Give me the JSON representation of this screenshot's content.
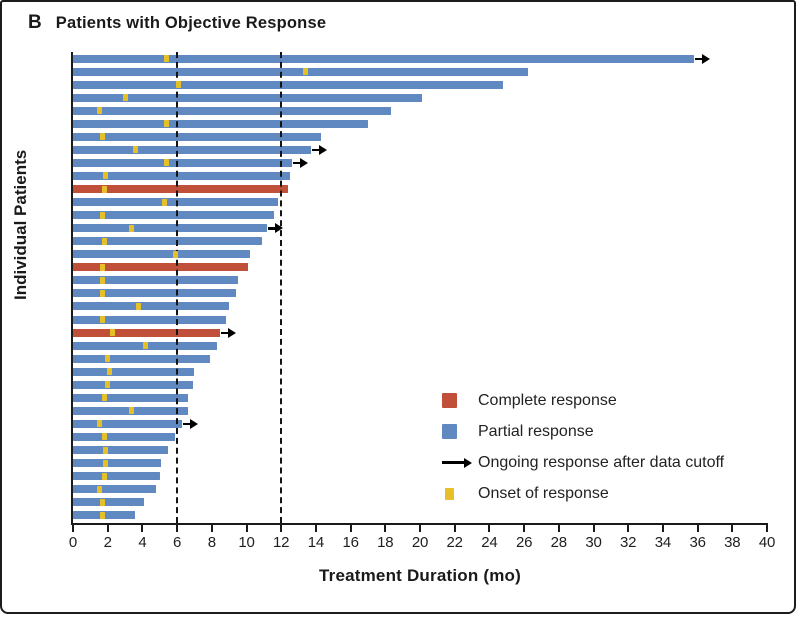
{
  "figure": {
    "panel_label": "B",
    "title": "Patients with Objective Response",
    "xlabel": "Treatment Duration (mo)",
    "ylabel": "Individual Patients"
  },
  "colors": {
    "complete": "#c0503a",
    "partial": "#6089c1",
    "onset": "#e6c029",
    "axis": "#1a1a1a",
    "reference_line": "#141414"
  },
  "legend": {
    "items": [
      {
        "marker": "complete-square",
        "label": "Complete response"
      },
      {
        "marker": "partial-square",
        "label": "Partial response"
      },
      {
        "marker": "ongoing-arrow",
        "label": "Ongoing response after data cutoff"
      },
      {
        "marker": "onset-square",
        "label": "Onset of response"
      }
    ]
  },
  "chart_data": {
    "type": "bar",
    "subtype": "swimmer-plot",
    "title": "Patients with Objective Response",
    "xlabel": "Treatment Duration (mo)",
    "ylabel": "Individual Patients",
    "xlim": [
      0,
      40
    ],
    "x_ticks": [
      0,
      2,
      4,
      6,
      8,
      10,
      12,
      14,
      16,
      18,
      20,
      22,
      24,
      26,
      28,
      30,
      32,
      34,
      36,
      38,
      40
    ],
    "reference_lines_mo": [
      6,
      12
    ],
    "grid": false,
    "legend_position": "inside-lower-right",
    "patients": [
      {
        "duration": 35.8,
        "response": "partial",
        "ongoing": true,
        "onset": 5.4
      },
      {
        "duration": 26.2,
        "response": "partial",
        "ongoing": false,
        "onset": 13.4
      },
      {
        "duration": 24.8,
        "response": "partial",
        "ongoing": false,
        "onset": 6.1
      },
      {
        "duration": 20.1,
        "response": "partial",
        "ongoing": false,
        "onset": 3.0
      },
      {
        "duration": 18.3,
        "response": "partial",
        "ongoing": false,
        "onset": 1.5
      },
      {
        "duration": 17.0,
        "response": "partial",
        "ongoing": false,
        "onset": 5.4
      },
      {
        "duration": 14.3,
        "response": "partial",
        "ongoing": false,
        "onset": 1.7
      },
      {
        "duration": 13.7,
        "response": "partial",
        "ongoing": true,
        "onset": 3.6
      },
      {
        "duration": 12.6,
        "response": "partial",
        "ongoing": true,
        "onset": 5.4
      },
      {
        "duration": 12.5,
        "response": "partial",
        "ongoing": false,
        "onset": 1.9
      },
      {
        "duration": 12.4,
        "response": "complete",
        "ongoing": false,
        "onset": 1.8
      },
      {
        "duration": 11.8,
        "response": "partial",
        "ongoing": false,
        "onset": 5.3
      },
      {
        "duration": 11.6,
        "response": "partial",
        "ongoing": false,
        "onset": 1.7
      },
      {
        "duration": 11.2,
        "response": "partial",
        "ongoing": true,
        "onset": 3.4
      },
      {
        "duration": 10.9,
        "response": "partial",
        "ongoing": false,
        "onset": 1.8
      },
      {
        "duration": 10.2,
        "response": "partial",
        "ongoing": false,
        "onset": 5.9
      },
      {
        "duration": 10.1,
        "response": "complete",
        "ongoing": false,
        "onset": 1.7
      },
      {
        "duration": 9.5,
        "response": "partial",
        "ongoing": false,
        "onset": 1.7
      },
      {
        "duration": 9.4,
        "response": "partial",
        "ongoing": false,
        "onset": 1.7
      },
      {
        "duration": 9.0,
        "response": "partial",
        "ongoing": false,
        "onset": 3.8
      },
      {
        "duration": 8.8,
        "response": "partial",
        "ongoing": false,
        "onset": 1.7
      },
      {
        "duration": 8.5,
        "response": "complete",
        "ongoing": true,
        "onset": 2.3
      },
      {
        "duration": 8.3,
        "response": "partial",
        "ongoing": false,
        "onset": 4.2
      },
      {
        "duration": 7.9,
        "response": "partial",
        "ongoing": false,
        "onset": 2.0
      },
      {
        "duration": 7.0,
        "response": "partial",
        "ongoing": false,
        "onset": 2.1
      },
      {
        "duration": 6.9,
        "response": "partial",
        "ongoing": false,
        "onset": 2.0
      },
      {
        "duration": 6.6,
        "response": "partial",
        "ongoing": false,
        "onset": 1.8
      },
      {
        "duration": 6.6,
        "response": "partial",
        "ongoing": false,
        "onset": 3.4
      },
      {
        "duration": 6.3,
        "response": "partial",
        "ongoing": true,
        "onset": 1.5
      },
      {
        "duration": 5.9,
        "response": "partial",
        "ongoing": false,
        "onset": 1.8
      },
      {
        "duration": 5.5,
        "response": "partial",
        "ongoing": false,
        "onset": 1.9
      },
      {
        "duration": 5.1,
        "response": "partial",
        "ongoing": false,
        "onset": 1.9
      },
      {
        "duration": 5.0,
        "response": "partial",
        "ongoing": false,
        "onset": 1.8
      },
      {
        "duration": 4.8,
        "response": "partial",
        "ongoing": false,
        "onset": 1.5
      },
      {
        "duration": 4.1,
        "response": "partial",
        "ongoing": false,
        "onset": 1.7
      },
      {
        "duration": 3.6,
        "response": "partial",
        "ongoing": false,
        "onset": 1.7
      }
    ]
  }
}
